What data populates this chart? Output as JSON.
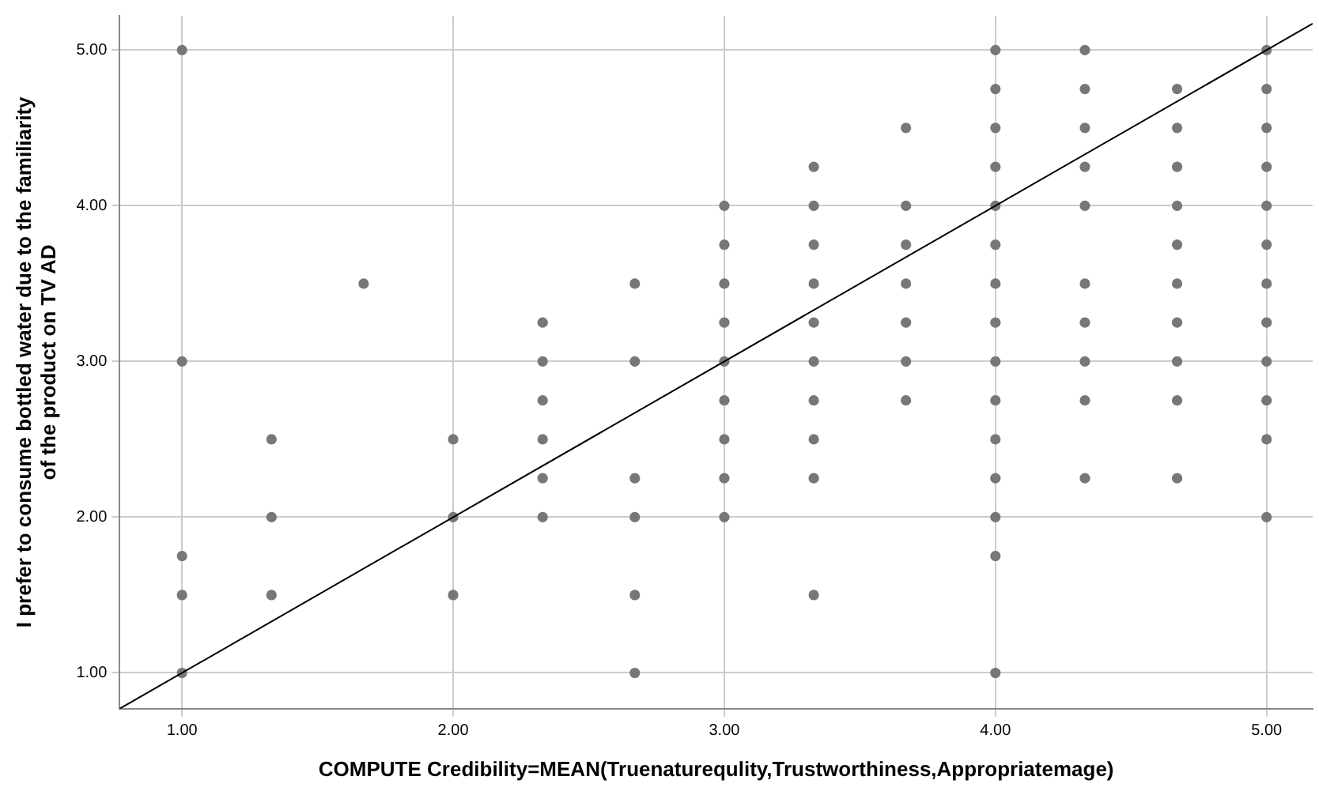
{
  "chart_data": {
    "type": "scatter",
    "xlabel": "COMPUTE Credibility=MEAN(Truenaturequlity,Trustworthiness,Appropriatemage)",
    "ylabel": "I prefer to consume bottled water due to the familiarity of the product on TV AD",
    "xlim": [
      0.77,
      5.17
    ],
    "ylim": [
      0.77,
      5.22
    ],
    "xticks": [
      {
        "value": 1,
        "label": "1.00"
      },
      {
        "value": 2,
        "label": "2.00"
      },
      {
        "value": 3,
        "label": "3.00"
      },
      {
        "value": 4,
        "label": "4.00"
      },
      {
        "value": 5,
        "label": "5.00"
      }
    ],
    "yticks": [
      {
        "value": 1,
        "label": "1.00"
      },
      {
        "value": 2,
        "label": "2.00"
      },
      {
        "value": 3,
        "label": "3.00"
      },
      {
        "value": 4,
        "label": "4.00"
      },
      {
        "value": 5,
        "label": "5.00"
      }
    ],
    "grid": true,
    "legend": false,
    "marker": "circle",
    "series": [
      {
        "color": "#777777",
        "x": [
          1,
          1,
          1,
          1,
          1,
          1.33,
          1.33,
          1.33,
          1.67,
          2,
          2,
          2,
          2.33,
          2.33,
          2.33,
          2.33,
          2.33,
          2.33,
          2.67,
          2.67,
          2.67,
          2.67,
          2.67,
          2.67,
          3,
          3,
          3,
          3,
          3,
          3,
          3,
          3,
          3,
          3.33,
          3.33,
          3.33,
          3.33,
          3.33,
          3.33,
          3.33,
          3.33,
          3.33,
          3.33,
          3.67,
          3.67,
          3.67,
          3.67,
          3.67,
          3.67,
          3.67,
          4,
          4,
          4,
          4,
          4,
          4,
          4,
          4,
          4,
          4,
          4,
          4,
          4,
          4,
          4,
          4.33,
          4.33,
          4.33,
          4.33,
          4.33,
          4.33,
          4.33,
          4.33,
          4.33,
          4.33,
          4.67,
          4.67,
          4.67,
          4.67,
          4.67,
          4.67,
          4.67,
          4.67,
          4.67,
          4.67,
          5,
          5,
          5,
          5,
          5,
          5,
          5,
          5,
          5,
          5,
          5,
          5
        ],
        "values": [
          5,
          3,
          1.75,
          1.5,
          1,
          2.5,
          2,
          1.5,
          3.5,
          2.5,
          2,
          1.5,
          3.25,
          3,
          2.75,
          2.5,
          2.25,
          2,
          3.5,
          3,
          2.25,
          2,
          1.5,
          1,
          4,
          3.75,
          3.5,
          3.25,
          3,
          2.75,
          2.5,
          2.25,
          2,
          4.25,
          4,
          3.75,
          3.5,
          3.25,
          3,
          2.75,
          2.5,
          2.25,
          1.5,
          4.5,
          4,
          3.75,
          3.5,
          3.25,
          3,
          2.75,
          5,
          4.75,
          4.5,
          4.25,
          4,
          3.75,
          3.5,
          3.25,
          3,
          2.75,
          2.5,
          2.25,
          2,
          1.75,
          1,
          5,
          4.75,
          4.5,
          4.25,
          4,
          3.5,
          3.25,
          3,
          2.75,
          2.25,
          4.75,
          4.5,
          4.25,
          4,
          3.75,
          3.5,
          3.25,
          3,
          2.75,
          2.25,
          5,
          4.75,
          4.5,
          4.25,
          4,
          3.75,
          3.5,
          3.25,
          3,
          2.75,
          2.5,
          2
        ]
      },
      {
        "type": "line",
        "color": "#000000",
        "marker": "none",
        "x": [
          0.77,
          5.17
        ],
        "values": [
          0.77,
          5.17
        ]
      }
    ]
  }
}
